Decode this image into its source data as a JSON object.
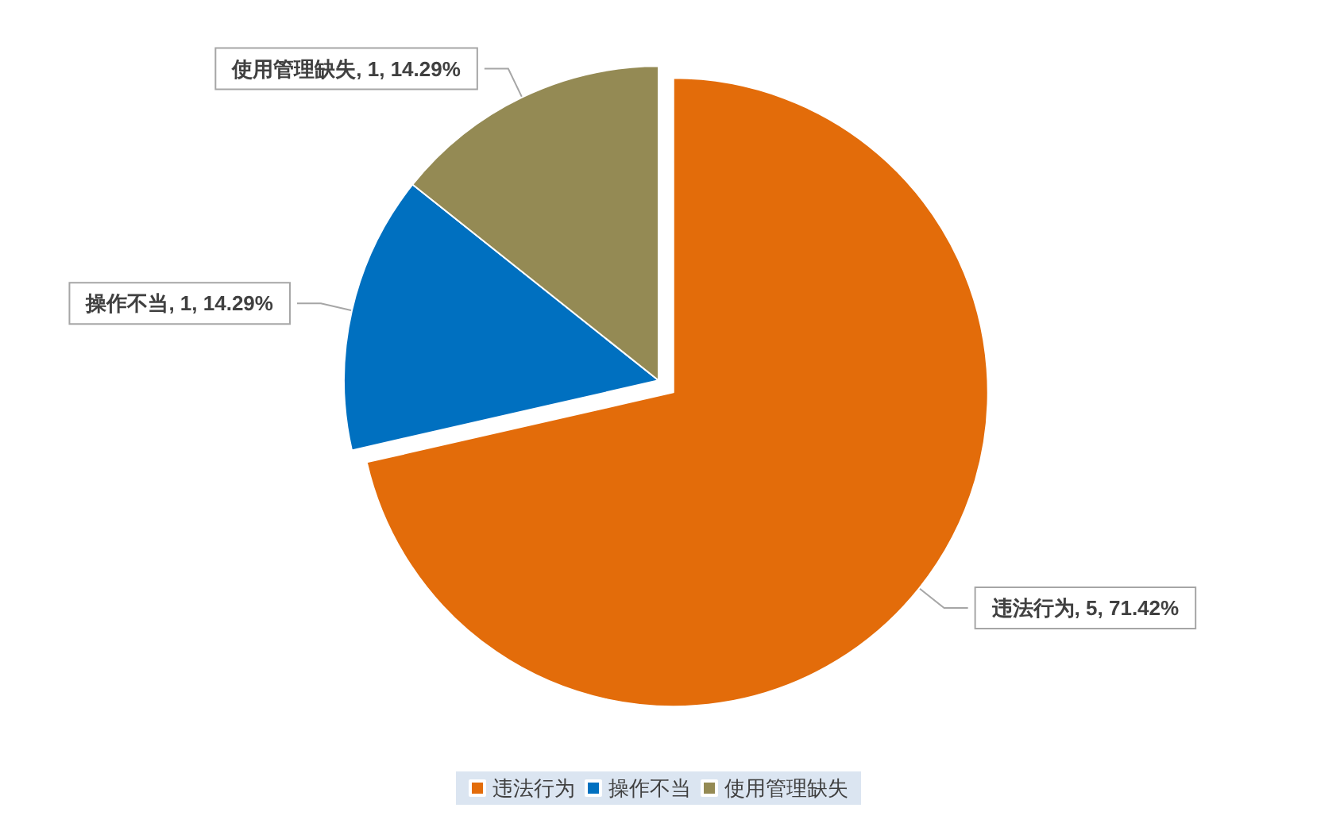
{
  "chart_data": {
    "type": "pie",
    "categories": [
      "违法行为",
      "操作不当",
      "使用管理缺失"
    ],
    "values": [
      5,
      1,
      1
    ],
    "colors": [
      "#e36c0a",
      "#0070c0",
      "#948a54"
    ],
    "value_labels": [
      "违法行为, 5, 71.42%",
      "操作不当, 1, 14.29%",
      "使用管理缺失, 1, 14.29%"
    ],
    "legend": "bottom"
  }
}
